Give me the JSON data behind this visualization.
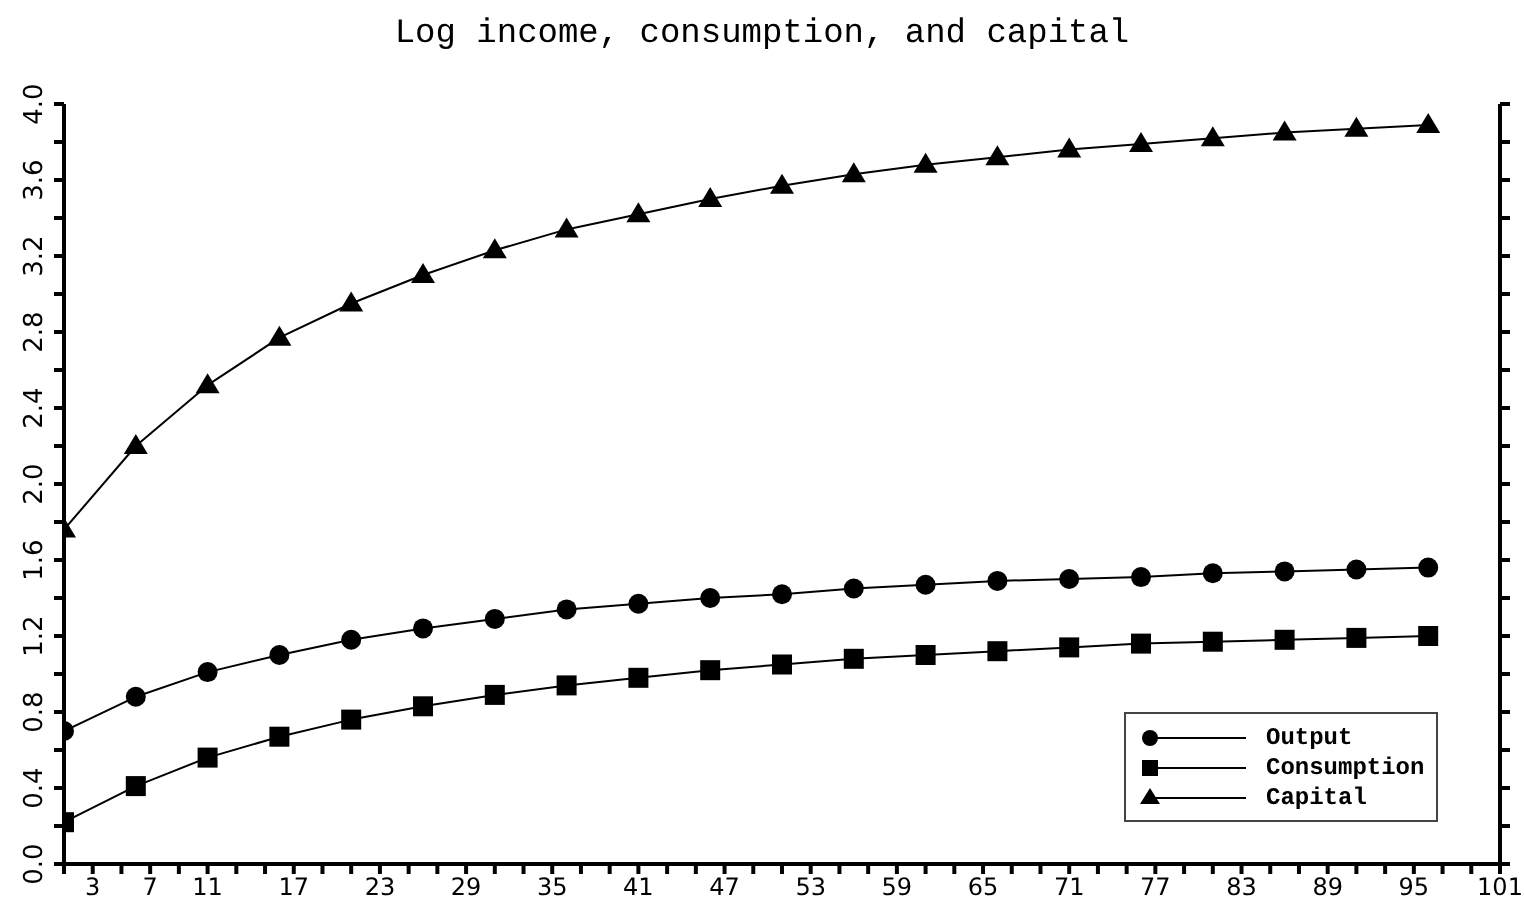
{
  "chart_data": {
    "type": "line",
    "title": "Log income, consumption, and capital",
    "x": [
      1,
      6,
      11,
      16,
      21,
      26,
      31,
      36,
      41,
      46,
      51,
      56,
      61,
      66,
      71,
      76,
      81,
      86,
      91,
      96
    ],
    "series": [
      {
        "name": "Output",
        "color": "#000000",
        "marker": "circle",
        "values": [
          0.7,
          0.88,
          1.01,
          1.1,
          1.18,
          1.24,
          1.29,
          1.34,
          1.37,
          1.4,
          1.42,
          1.45,
          1.47,
          1.49,
          1.5,
          1.51,
          1.53,
          1.54,
          1.55,
          1.56
        ]
      },
      {
        "name": "Consumption",
        "color": "#000000",
        "marker": "square",
        "values": [
          0.22,
          0.41,
          0.56,
          0.67,
          0.76,
          0.83,
          0.89,
          0.94,
          0.98,
          1.02,
          1.05,
          1.08,
          1.1,
          1.12,
          1.14,
          1.16,
          1.17,
          1.18,
          1.19,
          1.2
        ]
      },
      {
        "name": "Capital",
        "color": "#000000",
        "marker": "triangle",
        "values": [
          1.76,
          2.2,
          2.52,
          2.77,
          2.95,
          3.1,
          3.23,
          3.34,
          3.42,
          3.5,
          3.57,
          3.63,
          3.68,
          3.72,
          3.76,
          3.79,
          3.82,
          3.85,
          3.87,
          3.89
        ]
      }
    ],
    "xlim": [
      1,
      101
    ],
    "xticks": [
      {
        "value": 1,
        "label": null
      },
      {
        "value": 3,
        "label": "3"
      },
      {
        "value": 5,
        "label": null
      },
      {
        "value": 7,
        "label": "7"
      },
      {
        "value": 9,
        "label": null
      },
      {
        "value": 11,
        "label": "11"
      },
      {
        "value": 13,
        "label": null
      },
      {
        "value": 15,
        "label": null
      },
      {
        "value": 17,
        "label": "17"
      },
      {
        "value": 19,
        "label": null
      },
      {
        "value": 21,
        "label": null
      },
      {
        "value": 23,
        "label": "23"
      },
      {
        "value": 25,
        "label": null
      },
      {
        "value": 27,
        "label": null
      },
      {
        "value": 29,
        "label": "29"
      },
      {
        "value": 31,
        "label": null
      },
      {
        "value": 33,
        "label": null
      },
      {
        "value": 35,
        "label": "35"
      },
      {
        "value": 37,
        "label": null
      },
      {
        "value": 39,
        "label": null
      },
      {
        "value": 41,
        "label": "41"
      },
      {
        "value": 43,
        "label": null
      },
      {
        "value": 45,
        "label": null
      },
      {
        "value": 47,
        "label": "47"
      },
      {
        "value": 49,
        "label": null
      },
      {
        "value": 51,
        "label": null
      },
      {
        "value": 53,
        "label": "53"
      },
      {
        "value": 55,
        "label": null
      },
      {
        "value": 57,
        "label": null
      },
      {
        "value": 59,
        "label": "59"
      },
      {
        "value": 61,
        "label": null
      },
      {
        "value": 63,
        "label": null
      },
      {
        "value": 65,
        "label": "65"
      },
      {
        "value": 67,
        "label": null
      },
      {
        "value": 69,
        "label": null
      },
      {
        "value": 71,
        "label": "71"
      },
      {
        "value": 73,
        "label": null
      },
      {
        "value": 75,
        "label": null
      },
      {
        "value": 77,
        "label": "77"
      },
      {
        "value": 79,
        "label": null
      },
      {
        "value": 81,
        "label": null
      },
      {
        "value": 83,
        "label": "83"
      },
      {
        "value": 85,
        "label": null
      },
      {
        "value": 87,
        "label": null
      },
      {
        "value": 89,
        "label": "89"
      },
      {
        "value": 91,
        "label": null
      },
      {
        "value": 93,
        "label": null
      },
      {
        "value": 95,
        "label": "95"
      },
      {
        "value": 97,
        "label": null
      },
      {
        "value": 99,
        "label": null
      },
      {
        "value": 101,
        "label": "101"
      }
    ],
    "ylim": [
      0,
      4
    ],
    "yticks": [
      {
        "value": 0,
        "label": "0.0"
      },
      {
        "value": 0.2,
        "label": null
      },
      {
        "value": 0.4,
        "label": "0.4"
      },
      {
        "value": 0.6,
        "label": null
      },
      {
        "value": 0.8,
        "label": "0.8"
      },
      {
        "value": 1.0,
        "label": null
      },
      {
        "value": 1.2,
        "label": "1.2"
      },
      {
        "value": 1.4,
        "label": null
      },
      {
        "value": 1.6,
        "label": "1.6"
      },
      {
        "value": 1.8,
        "label": null
      },
      {
        "value": 2.0,
        "label": "2.0"
      },
      {
        "value": 2.2,
        "label": null
      },
      {
        "value": 2.4,
        "label": "2.4"
      },
      {
        "value": 2.6,
        "label": null
      },
      {
        "value": 2.8,
        "label": "2.8"
      },
      {
        "value": 3.0,
        "label": null
      },
      {
        "value": 3.2,
        "label": "3.2"
      },
      {
        "value": 3.4,
        "label": null
      },
      {
        "value": 3.6,
        "label": "3.6"
      },
      {
        "value": 3.8,
        "label": null
      },
      {
        "value": 4.0,
        "label": "4.0"
      }
    ],
    "grid": false,
    "legend": "bottom right"
  }
}
